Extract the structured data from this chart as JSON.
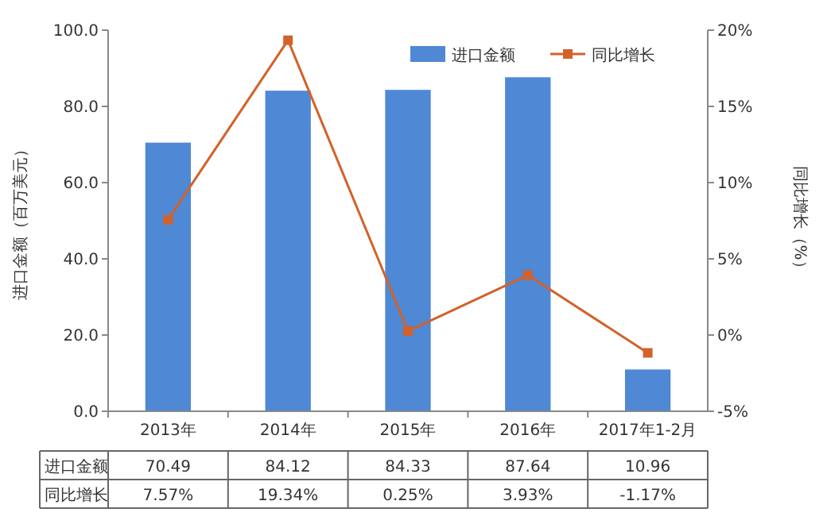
{
  "chart_data": {
    "type": "bar",
    "ylabel": "进口金额（百万美元）",
    "y2label": "同比增长（%）",
    "categories": [
      "2013年",
      "2014年",
      "2015年",
      "2016年",
      "2017年1-2月"
    ],
    "series": [
      {
        "name": "进口金额",
        "color": "#4f88d4",
        "values": [
          70.49,
          84.12,
          84.33,
          87.64,
          10.96
        ],
        "value_labels": [
          "70.49",
          "84.12",
          "84.33",
          "87.64",
          "10.96"
        ]
      },
      {
        "name": "同比增长",
        "type": "line",
        "axis": "y2",
        "color": "#d2622a",
        "values": [
          7.57,
          19.34,
          0.25,
          3.93,
          -1.17
        ],
        "value_labels": [
          "7.57%",
          "19.34%",
          "0.25%",
          "3.93%",
          "-1.17%"
        ]
      }
    ],
    "ylim": [
      0,
      100
    ],
    "yticks": [
      {
        "value": 0,
        "label": "0.0"
      },
      {
        "value": 20,
        "label": "20.0"
      },
      {
        "value": 40,
        "label": "40.0"
      },
      {
        "value": 60,
        "label": "60.0"
      },
      {
        "value": 80,
        "label": "80.0"
      },
      {
        "value": 100,
        "label": "100.0"
      }
    ],
    "y2lim": [
      -5,
      20
    ],
    "y2ticks": [
      {
        "value": -5,
        "label": "-5%"
      },
      {
        "value": 0,
        "label": "0%"
      },
      {
        "value": 5,
        "label": "5%"
      },
      {
        "value": 10,
        "label": "10%"
      },
      {
        "value": 15,
        "label": "15%"
      },
      {
        "value": 20,
        "label": "20%"
      }
    ],
    "marker": "square",
    "legend": "top right",
    "grid": false
  }
}
